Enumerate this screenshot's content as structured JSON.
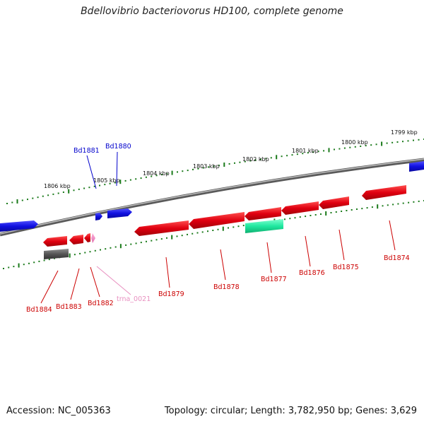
{
  "title": "Bdellovibrio bacteriovorus HD100, complete genome",
  "footer": {
    "accession": "Accession: NC_005363",
    "topology": "Topology: circular; Length: 3,782,950 bp; Genes: 3,629"
  },
  "colors": {
    "forward_gene": "#1010e0",
    "reverse_gene": "#e00010",
    "rrna": "#20e8a0",
    "trna": "#f080c0",
    "pseudo": "#555555",
    "tick": "#1a7a1a",
    "backbone": "#808080",
    "label_fwd": "#0000cc",
    "label_rev": "#cc0000",
    "label_trna": "#e890c0"
  },
  "scale": {
    "unit": "kbp",
    "major_ticks": [
      {
        "kbp": 1806,
        "label": "1806 kbp"
      },
      {
        "kbp": 1805,
        "label": "1805 kbp"
      },
      {
        "kbp": 1804,
        "label": "1804 kbp"
      },
      {
        "kbp": 1803,
        "label": "1803 kbp"
      },
      {
        "kbp": 1802,
        "label": "1802 kbp"
      },
      {
        "kbp": 1801,
        "label": "1801 kbp"
      },
      {
        "kbp": 1800,
        "label": "1800 kbp"
      },
      {
        "kbp": 1799,
        "label": "1799 kbp"
      }
    ]
  },
  "genes": [
    {
      "id": "Bd1881",
      "label": "Bd1881",
      "strand": "+",
      "type": "gene"
    },
    {
      "id": "Bd1880",
      "label": "Bd1880",
      "strand": "+",
      "type": "gene"
    },
    {
      "id": "Bd1884",
      "label": "Bd1884",
      "strand": "-",
      "type": "pseudo"
    },
    {
      "id": "Bd1883",
      "label": "Bd1883",
      "strand": "-",
      "type": "gene"
    },
    {
      "id": "Bd1882",
      "label": "Bd1882",
      "strand": "-",
      "type": "gene"
    },
    {
      "id": "trna_0021",
      "label": "trna_0021",
      "strand": "-",
      "type": "tRNA"
    },
    {
      "id": "Bd1879",
      "label": "Bd1879",
      "strand": "-",
      "type": "gene"
    },
    {
      "id": "Bd1878",
      "label": "Bd1878",
      "strand": "-",
      "type": "gene"
    },
    {
      "id": "Bd1877",
      "label": "Bd1877",
      "strand": "-",
      "type": "rRNA"
    },
    {
      "id": "Bd1876",
      "label": "Bd1876",
      "strand": "-",
      "type": "gene"
    },
    {
      "id": "Bd1875",
      "label": "Bd1875",
      "strand": "-",
      "type": "gene"
    },
    {
      "id": "Bd1874",
      "label": "Bd1874",
      "strand": "-",
      "type": "gene"
    }
  ]
}
